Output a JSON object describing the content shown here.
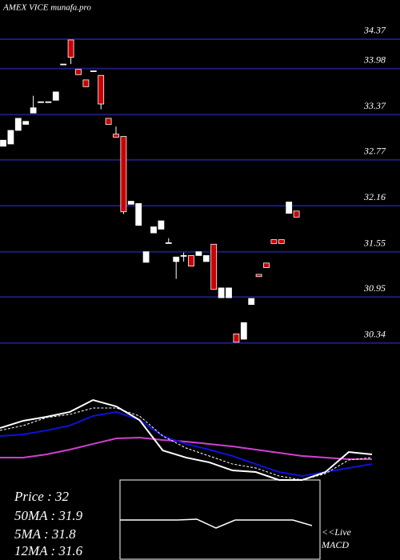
{
  "chart_data": [
    {
      "type": "candlestick",
      "title": "AMEX  VICE munafa.pro",
      "open": [
        32.95,
        32.98,
        33.16,
        33.24,
        33.39,
        33.54,
        33.54,
        33.56,
        34.04,
        34.36,
        33.97,
        33.83,
        33.95,
        33.89,
        33.32,
        33.11,
        33.08,
        32.18,
        31.9,
        31.41,
        31.8,
        31.85,
        31.67,
        31.42,
        31.5,
        31.5,
        31.5,
        31.42,
        31.65,
        30.94,
        30.94,
        30.46,
        30.39,
        30.85,
        31.25,
        31.4,
        31.71,
        31.71,
        32.06,
        32.09
      ],
      "high": [
        33.03,
        33.16,
        33.32,
        33.28,
        33.62,
        33.54,
        33.54,
        33.67,
        34.04,
        34.36,
        33.97,
        33.83,
        33.95,
        33.89,
        33.32,
        33.21,
        33.08,
        32.22,
        32.19,
        31.55,
        31.88,
        31.96,
        31.73,
        31.48,
        31.54,
        31.5,
        31.55,
        31.5,
        31.65,
        31.07,
        31.07,
        30.46,
        30.61,
        30.93,
        31.25,
        31.4,
        31.71,
        31.71,
        32.21,
        32.09
      ],
      "low": [
        32.95,
        32.98,
        33.16,
        33.24,
        33.39,
        33.54,
        33.54,
        33.56,
        34.04,
        34.04,
        33.9,
        33.74,
        33.95,
        33.44,
        33.24,
        33.07,
        32.05,
        32.18,
        31.9,
        31.41,
        31.8,
        31.85,
        31.67,
        31.19,
        31.42,
        31.36,
        31.5,
        31.42,
        31.05,
        30.94,
        30.94,
        30.35,
        30.39,
        30.85,
        31.22,
        31.34,
        31.66,
        31.66,
        32.06,
        32.01
      ],
      "close": [
        33.03,
        33.16,
        33.32,
        33.28,
        33.46,
        33.54,
        33.54,
        33.67,
        34.04,
        34.13,
        33.9,
        33.74,
        33.95,
        33.51,
        33.24,
        33.07,
        32.08,
        32.22,
        32.19,
        31.55,
        31.88,
        31.96,
        31.67,
        31.48,
        31.5,
        31.36,
        31.55,
        31.5,
        31.05,
        31.07,
        31.07,
        30.35,
        30.61,
        30.93,
        31.22,
        31.34,
        31.66,
        31.66,
        32.21,
        32.01
      ],
      "up_color": "#ffffff",
      "down_color": "#cc0000",
      "grid_color": "#1c1c7a",
      "ylim": [
        30.22,
        34.89
      ],
      "yticks": [
        34.37,
        33.98,
        33.37,
        32.77,
        32.16,
        31.55,
        30.95,
        30.34
      ],
      "grid": true
    },
    {
      "type": "line",
      "ylim": [
        0,
        100
      ],
      "series": [
        {
          "color": "#d040d0",
          "values": [
            26.7,
            26.7,
            30.5,
            36.2,
            42.9,
            49.5,
            50.5,
            47.6,
            45.7,
            42.9,
            40.0,
            36.2,
            32.4,
            28.6,
            26.7,
            24.8,
            24.8
          ]
        },
        {
          "color": "#1010e0",
          "values": [
            52.4,
            54.3,
            59.0,
            64.8,
            76.2,
            81.0,
            71.4,
            52.4,
            42.9,
            36.2,
            28.6,
            19.0,
            9.5,
            4.8,
            9.5,
            14.3,
            19.0
          ]
        },
        {
          "color": "#ffffff",
          "dash": true,
          "values": [
            59.0,
            64.8,
            74.3,
            78.1,
            85.7,
            85.7,
            76.2,
            52.4,
            38.1,
            28.6,
            19.0,
            14.3,
            4.8,
            0,
            7.6,
            23.8,
            26.7
          ]
        },
        {
          "color": "#ffffff",
          "values": [
            61.9,
            70.5,
            75.2,
            81.0,
            95.2,
            87.6,
            71.4,
            35.2,
            26.7,
            21.0,
            11.4,
            9.5,
            0,
            0,
            9.5,
            33.3,
            30.5
          ]
        }
      ]
    },
    {
      "type": "macd",
      "ylim": [
        0,
        100
      ],
      "series": [
        {
          "color": "#ffffff",
          "values": [
            50,
            50,
            50,
            50,
            51,
            40,
            50,
            50,
            50,
            50,
            43
          ]
        }
      ]
    }
  ],
  "info": [
    "Price   : 32",
    "50MA : 31.9",
    "5MA : 31.8",
    "12MA : 31.6"
  ],
  "live": "<<Live",
  "macd_label": "MACD"
}
